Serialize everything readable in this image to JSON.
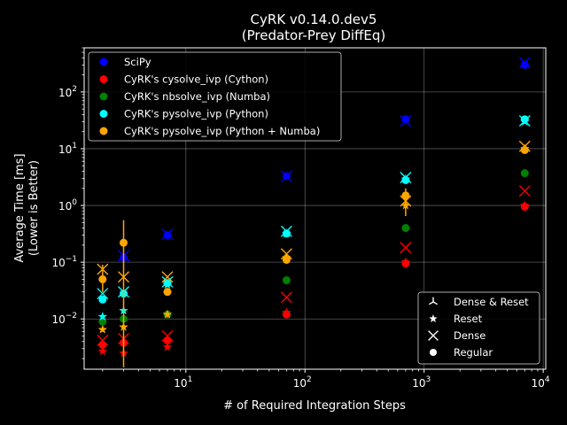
{
  "chart_data": {
    "type": "scatter",
    "title": "CyRK v0.14.0.dev5",
    "subtitle": "(Predator-Prey DiffEq)",
    "xlabel": "# of Required Integration Steps",
    "ylabel_line1": "Average Time [ms]",
    "ylabel_line2": "(Lower is Better)",
    "x_scale": "log",
    "y_scale": "log",
    "xlim": [
      1.4,
      10500
    ],
    "ylim": [
      0.0013,
      600
    ],
    "x_ticks": [
      {
        "value": 10,
        "base": "10",
        "exp": "1"
      },
      {
        "value": 100,
        "base": "10",
        "exp": "2"
      },
      {
        "value": 1000,
        "base": "10",
        "exp": "3"
      },
      {
        "value": 10000,
        "base": "10",
        "exp": "4"
      }
    ],
    "y_ticks": [
      {
        "value": 0.01,
        "base": "10",
        "exp": "−2"
      },
      {
        "value": 0.1,
        "base": "10",
        "exp": "−1"
      },
      {
        "value": 1,
        "base": "10",
        "exp": "0"
      },
      {
        "value": 10,
        "base": "10",
        "exp": "1"
      },
      {
        "value": 100,
        "base": "10",
        "exp": "2"
      }
    ],
    "grid": true,
    "series_legend_position": "top-left",
    "marker_legend_position": "bottom-right",
    "series": [
      {
        "name": "SciPy",
        "color": "#0000ff",
        "points": [
          {
            "x": 2,
            "y": 0.075,
            "marker": "x"
          },
          {
            "x": 3,
            "y": 0.12,
            "marker": "circle"
          },
          {
            "x": 3,
            "y": 0.13,
            "marker": "x"
          },
          {
            "x": 7,
            "y": 0.3,
            "marker": "circle"
          },
          {
            "x": 7,
            "y": 0.31,
            "marker": "x"
          },
          {
            "x": 70,
            "y": 3.3,
            "marker": "circle"
          },
          {
            "x": 70,
            "y": 3.3,
            "marker": "x"
          },
          {
            "x": 700,
            "y": 33,
            "marker": "circle"
          },
          {
            "x": 700,
            "y": 31,
            "marker": "x"
          },
          {
            "x": 7000,
            "y": 300,
            "marker": "circle"
          },
          {
            "x": 7000,
            "y": 330,
            "marker": "x"
          }
        ]
      },
      {
        "name": "CyRK's cysolve_ivp (Cython)",
        "color": "#ff0000",
        "points": [
          {
            "x": 2,
            "y": 0.0035,
            "marker": "circle"
          },
          {
            "x": 2,
            "y": 0.0027,
            "marker": "star"
          },
          {
            "x": 2,
            "y": 0.0042,
            "marker": "x"
          },
          {
            "x": 3,
            "y": 0.0038,
            "marker": "circle"
          },
          {
            "x": 3,
            "y": 0.0025,
            "marker": "star"
          },
          {
            "x": 3,
            "y": 0.0045,
            "marker": "x"
          },
          {
            "x": 7,
            "y": 0.0042,
            "marker": "circle"
          },
          {
            "x": 7,
            "y": 0.0032,
            "marker": "star"
          },
          {
            "x": 7,
            "y": 0.005,
            "marker": "x"
          },
          {
            "x": 70,
            "y": 0.012,
            "marker": "circle"
          },
          {
            "x": 70,
            "y": 0.013,
            "marker": "star"
          },
          {
            "x": 70,
            "y": 0.024,
            "marker": "x"
          },
          {
            "x": 700,
            "y": 0.095,
            "marker": "circle"
          },
          {
            "x": 700,
            "y": 0.1,
            "marker": "star"
          },
          {
            "x": 700,
            "y": 0.18,
            "marker": "x"
          },
          {
            "x": 7000,
            "y": 0.95,
            "marker": "circle"
          },
          {
            "x": 7000,
            "y": 1.0,
            "marker": "star"
          },
          {
            "x": 7000,
            "y": 1.8,
            "marker": "x"
          }
        ]
      },
      {
        "name": "CyRK's nbsolve_ivp (Numba)",
        "color": "#008000",
        "points": [
          {
            "x": 2,
            "y": 0.009,
            "marker": "circle"
          },
          {
            "x": 3,
            "y": 0.01,
            "marker": "circle"
          },
          {
            "x": 7,
            "y": 0.012,
            "marker": "circle"
          },
          {
            "x": 70,
            "y": 0.048,
            "marker": "circle"
          },
          {
            "x": 700,
            "y": 0.4,
            "marker": "circle"
          },
          {
            "x": 7000,
            "y": 3.7,
            "marker": "circle"
          }
        ]
      },
      {
        "name": "CyRK's pysolve_ivp (Python)",
        "color": "#00ffff",
        "points": [
          {
            "x": 2,
            "y": 0.022,
            "marker": "circle"
          },
          {
            "x": 2,
            "y": 0.011,
            "marker": "star"
          },
          {
            "x": 2,
            "y": 0.028,
            "marker": "x"
          },
          {
            "x": 3,
            "y": 0.028,
            "marker": "circle"
          },
          {
            "x": 3,
            "y": 0.014,
            "marker": "star"
          },
          {
            "x": 3,
            "y": 0.03,
            "marker": "x"
          },
          {
            "x": 7,
            "y": 0.043,
            "marker": "circle"
          },
          {
            "x": 7,
            "y": 0.04,
            "marker": "star"
          },
          {
            "x": 7,
            "y": 0.045,
            "marker": "x"
          },
          {
            "x": 70,
            "y": 0.32,
            "marker": "circle"
          },
          {
            "x": 70,
            "y": 0.32,
            "marker": "star"
          },
          {
            "x": 70,
            "y": 0.35,
            "marker": "x"
          },
          {
            "x": 700,
            "y": 2.8,
            "marker": "circle"
          },
          {
            "x": 700,
            "y": 2.9,
            "marker": "star"
          },
          {
            "x": 700,
            "y": 3.1,
            "marker": "x"
          },
          {
            "x": 7000,
            "y": 33,
            "marker": "circle"
          },
          {
            "x": 7000,
            "y": 30,
            "marker": "star"
          },
          {
            "x": 7000,
            "y": 31,
            "marker": "x"
          }
        ]
      },
      {
        "name": "CyRK's pysolve_ivp (Python + Numba)",
        "color": "#ffa500",
        "points": [
          {
            "x": 2,
            "y": 0.05,
            "marker": "circle",
            "err": [
              0.03,
              0.09
            ]
          },
          {
            "x": 2,
            "y": 0.0065,
            "marker": "star"
          },
          {
            "x": 2,
            "y": 0.075,
            "marker": "x"
          },
          {
            "x": 3,
            "y": 0.22,
            "marker": "circle",
            "err": [
              0.0014,
              0.55
            ]
          },
          {
            "x": 3,
            "y": 0.0072,
            "marker": "star"
          },
          {
            "x": 3,
            "y": 0.055,
            "marker": "x"
          },
          {
            "x": 7,
            "y": 0.03,
            "marker": "circle"
          },
          {
            "x": 7,
            "y": 0.012,
            "marker": "star"
          },
          {
            "x": 7,
            "y": 0.055,
            "marker": "x"
          },
          {
            "x": 70,
            "y": 0.11,
            "marker": "circle"
          },
          {
            "x": 70,
            "y": 0.12,
            "marker": "star"
          },
          {
            "x": 70,
            "y": 0.14,
            "marker": "x"
          },
          {
            "x": 700,
            "y": 1.5,
            "marker": "circle",
            "err": [
              0.65,
              2.0
            ]
          },
          {
            "x": 700,
            "y": 1.0,
            "marker": "star"
          },
          {
            "x": 700,
            "y": 1.2,
            "marker": "x"
          },
          {
            "x": 7000,
            "y": 9.5,
            "marker": "circle"
          },
          {
            "x": 7000,
            "y": 10,
            "marker": "star"
          },
          {
            "x": 7000,
            "y": 11,
            "marker": "x"
          }
        ]
      }
    ],
    "marker_legend": [
      {
        "label": "Dense & Reset",
        "marker": "tri"
      },
      {
        "label": "Reset",
        "marker": "star"
      },
      {
        "label": "Dense",
        "marker": "x"
      },
      {
        "label": "Regular",
        "marker": "circle"
      }
    ]
  }
}
